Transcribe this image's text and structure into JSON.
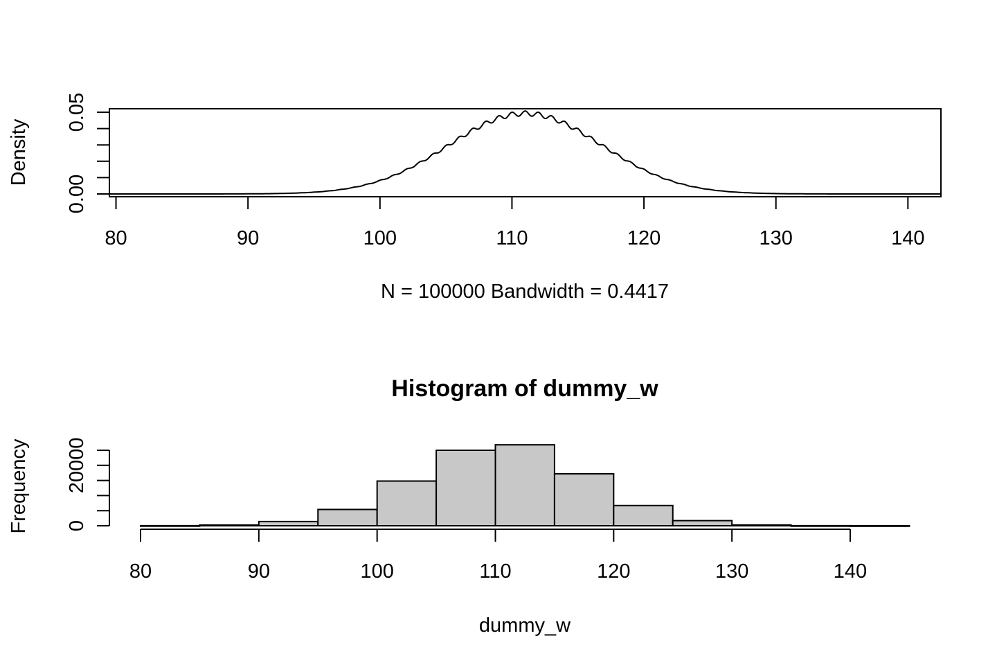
{
  "chart_data": [
    {
      "type": "line",
      "title": "",
      "xlabel": "N = 100000   Bandwidth = 0.4417",
      "ylabel": "Density",
      "xlim": [
        79.5,
        142.5
      ],
      "ylim": [
        0,
        0.05
      ],
      "x_ticks": [
        80,
        90,
        100,
        110,
        120,
        130,
        140
      ],
      "y_ticks": [
        0,
        0.01,
        0.02,
        0.03,
        0.04,
        0.05
      ],
      "y_tick_labels": [
        "0.00",
        "",
        "",
        "",
        "",
        "0.05"
      ],
      "density": {
        "center": 111,
        "sd": 5.8,
        "peak": 0.05,
        "ripple_period": 1,
        "ripple_amplitude": 0.0015
      },
      "box": true,
      "grid": false,
      "line_color": "#000000"
    },
    {
      "type": "bar",
      "title": "Histogram of dummy_w",
      "xlabel": "dummy_w",
      "ylabel": "Frequency",
      "xlim": [
        80,
        145
      ],
      "ylim": [
        0,
        25000
      ],
      "x_ticks": [
        80,
        90,
        100,
        110,
        120,
        130,
        140
      ],
      "y_ticks": [
        0,
        5000,
        10000,
        15000,
        20000,
        25000
      ],
      "y_tick_labels": [
        "0",
        "",
        "",
        "",
        "20000",
        ""
      ],
      "bins": [
        {
          "start": 80,
          "end": 85,
          "count": 30
        },
        {
          "start": 85,
          "end": 90,
          "count": 250
        },
        {
          "start": 90,
          "end": 95,
          "count": 1400
        },
        {
          "start": 95,
          "end": 100,
          "count": 5400
        },
        {
          "start": 100,
          "end": 105,
          "count": 14800
        },
        {
          "start": 105,
          "end": 110,
          "count": 25000
        },
        {
          "start": 110,
          "end": 115,
          "count": 26800
        },
        {
          "start": 115,
          "end": 120,
          "count": 17200
        },
        {
          "start": 120,
          "end": 125,
          "count": 6700
        },
        {
          "start": 125,
          "end": 130,
          "count": 1700
        },
        {
          "start": 130,
          "end": 135,
          "count": 270
        },
        {
          "start": 135,
          "end": 140,
          "count": 30
        },
        {
          "start": 140,
          "end": 145,
          "count": 5
        }
      ],
      "bar_fill": "#c8c8c8",
      "bar_stroke": "#000000"
    }
  ]
}
